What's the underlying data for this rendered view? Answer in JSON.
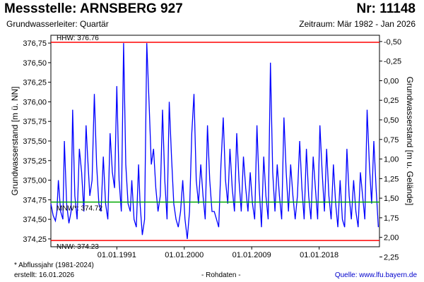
{
  "header": {
    "station": "Messstelle: ARNSBERG 927",
    "number": "Nr: 11148",
    "aquifer": "Grundwasserleiter: Quartär",
    "period": "Zeitraum: Mär 1982 - Jan 2026"
  },
  "footer": {
    "footnote": "* Abflussjahr (1981-2024)",
    "created": "erstellt:  16.01.2026",
    "raw_data": "- Rohdaten -",
    "source": "Quelle: www.lfu.bayern.de"
  },
  "colors": {
    "series": "#0000ff",
    "hhw": "#ff0000",
    "nnw": "#ff0000",
    "mnw": "#00aa00"
  },
  "chart_data": {
    "type": "line",
    "ylabel": "Grundwasserstand [m ü. NN]",
    "ylabel_right": "Grundwasserstand [m u. Gelände]",
    "ylim": [
      374.15,
      376.85
    ],
    "yticks": [
      "374,25",
      "374,50",
      "374,75",
      "375,00",
      "375,25",
      "375,50",
      "375,75",
      "376,00",
      "376,25",
      "376,50",
      "376,75"
    ],
    "yticks_right": [
      "-0,50",
      "-0,25",
      "0,00",
      "0,25",
      "0,50",
      "0,75",
      "1,00",
      "1,25",
      "1,50",
      "1,75",
      "2,00",
      "2,25"
    ],
    "right_axis_offset": 376.27,
    "xlim": [
      1982.2,
      2026.05
    ],
    "xticks": [
      {
        "x": 1991.0,
        "label": "01.01.1991"
      },
      {
        "x": 2000.0,
        "label": "01.01.2000"
      },
      {
        "x": 2009.0,
        "label": "01.01.2009"
      },
      {
        "x": 2018.0,
        "label": "01.01.2018"
      }
    ],
    "reference_lines": [
      {
        "label": "HHW: 376.76",
        "value": 376.76
      },
      {
        "label": "MNW*: 374.72",
        "value": 374.72
      },
      {
        "label": "NNW: 374.23",
        "value": 374.23
      }
    ],
    "series": [
      {
        "x": [
          1982.2,
          1982.5,
          1982.8,
          1983.0,
          1983.2,
          1983.5,
          1983.8,
          1984.0,
          1984.3,
          1984.6,
          1984.9,
          1985.1,
          1985.4,
          1985.7,
          1986.0,
          1986.3,
          1986.6,
          1986.9,
          1987.1,
          1987.4,
          1987.7,
          1988.0,
          1988.3,
          1988.6,
          1988.9,
          1989.2,
          1989.5,
          1989.8,
          1990.1,
          1990.4,
          1990.7,
          1991.0,
          1991.3,
          1991.6,
          1991.9,
          1992.2,
          1992.5,
          1992.8,
          1993.0,
          1993.3,
          1993.6,
          1993.9,
          1994.1,
          1994.4,
          1994.7,
          1995.0,
          1995.3,
          1995.6,
          1995.9,
          1996.2,
          1996.5,
          1996.8,
          1997.1,
          1997.4,
          1997.7,
          1998.0,
          1998.3,
          1998.6,
          1998.9,
          1999.2,
          1999.5,
          1999.8,
          2000.1,
          2000.4,
          2000.7,
          2001.0,
          2001.3,
          2001.6,
          2001.9,
          2002.2,
          2002.5,
          2002.8,
          2003.1,
          2003.4,
          2003.7,
          2004.0,
          2004.3,
          2004.6,
          2004.9,
          2005.2,
          2005.5,
          2005.8,
          2006.1,
          2006.4,
          2006.7,
          2007.0,
          2007.3,
          2007.6,
          2007.9,
          2008.2,
          2008.5,
          2008.8,
          2009.1,
          2009.4,
          2009.7,
          2010.0,
          2010.3,
          2010.6,
          2010.9,
          2011.2,
          2011.5,
          2011.8,
          2012.1,
          2012.4,
          2012.7,
          2013.0,
          2013.3,
          2013.6,
          2013.9,
          2014.2,
          2014.5,
          2014.8,
          2015.1,
          2015.4,
          2015.7,
          2016.0,
          2016.3,
          2016.6,
          2016.9,
          2017.2,
          2017.5,
          2017.8,
          2018.1,
          2018.4,
          2018.7,
          2019.0,
          2019.3,
          2019.6,
          2019.9,
          2020.2,
          2020.5,
          2020.8,
          2021.1,
          2021.4,
          2021.7,
          2022.0,
          2022.3,
          2022.6,
          2022.9,
          2023.2,
          2023.5,
          2023.8,
          2024.1,
          2024.4,
          2024.7,
          2025.0,
          2025.3,
          2025.6,
          2025.9
        ],
        "y": [
          374.7,
          374.55,
          374.48,
          374.6,
          375.0,
          374.6,
          374.5,
          375.5,
          374.7,
          374.45,
          374.6,
          375.9,
          374.8,
          374.5,
          375.4,
          375.1,
          374.6,
          375.7,
          375.3,
          374.8,
          375.0,
          376.1,
          375.2,
          374.7,
          374.6,
          375.3,
          374.7,
          374.5,
          375.6,
          375.1,
          374.9,
          376.2,
          375.0,
          374.6,
          376.75,
          375.2,
          374.7,
          374.6,
          375.0,
          374.5,
          374.4,
          375.2,
          374.7,
          374.3,
          374.5,
          376.75,
          376.0,
          375.2,
          375.4,
          374.9,
          374.6,
          374.8,
          375.9,
          375.0,
          374.5,
          376.0,
          375.3,
          374.7,
          374.5,
          374.4,
          374.6,
          375.0,
          374.5,
          374.25,
          374.6,
          375.6,
          376.1,
          375.0,
          374.7,
          375.2,
          374.8,
          374.5,
          375.7,
          375.0,
          374.6,
          374.6,
          374.5,
          374.4,
          375.2,
          375.8,
          375.0,
          374.7,
          375.4,
          374.9,
          374.6,
          375.6,
          375.0,
          374.6,
          375.3,
          374.9,
          374.6,
          375.1,
          374.7,
          374.5,
          375.7,
          374.9,
          374.4,
          375.3,
          374.8,
          374.5,
          376.5,
          375.1,
          374.6,
          375.2,
          374.8,
          374.5,
          375.8,
          375.1,
          374.6,
          375.2,
          374.8,
          374.5,
          374.8,
          375.5,
          374.9,
          374.5,
          375.4,
          374.8,
          374.5,
          375.3,
          374.9,
          374.5,
          375.7,
          375.1,
          374.6,
          375.4,
          374.8,
          374.5,
          375.2,
          374.7,
          374.4,
          375.0,
          374.5,
          374.4,
          375.4,
          374.8,
          374.5,
          375.0,
          374.6,
          374.4,
          375.1,
          374.8,
          374.5,
          375.9,
          375.2,
          374.7,
          375.5,
          374.9,
          374.4
        ]
      }
    ]
  }
}
